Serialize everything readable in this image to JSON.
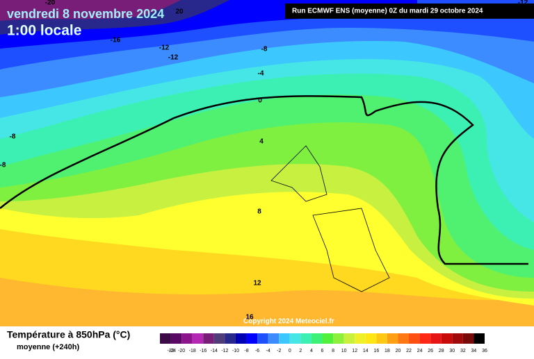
{
  "header": {
    "title": "vendredi 8 novembre 2024",
    "subtitle": "1:00 locale",
    "run": "Run ECMWF ENS (moyenne) 0Z du mardi 29 octobre 2024"
  },
  "map": {
    "contour_labels": [
      -20,
      20,
      -16,
      -12,
      -12,
      -8,
      -4,
      0,
      4,
      8,
      12,
      16,
      -8,
      -8,
      -12
    ],
    "copyright": "Copyright 2024 Meteociel.fr"
  },
  "legend": {
    "title": "Température à 850hPa (°C)",
    "subtitle": "moyenne  (+240h)",
    "labels": [
      -24,
      -22,
      -20,
      -18,
      -16,
      -14,
      -12,
      -10,
      -8,
      -6,
      -4,
      -2,
      0,
      2,
      4,
      6,
      8,
      10,
      12,
      14,
      16,
      18,
      20,
      22,
      24,
      26,
      28,
      30,
      32,
      34,
      36
    ],
    "colors": [
      "#3c0a46",
      "#5a0a64",
      "#8c148c",
      "#b428b4",
      "#781e78",
      "#503c78",
      "#28288c",
      "#0000b4",
      "#0000ff",
      "#1e50ff",
      "#3c8cff",
      "#3cc8ff",
      "#46e6e6",
      "#3cf0b4",
      "#3cf078",
      "#50f03c",
      "#8cf03c",
      "#c8f03c",
      "#f0f028",
      "#ffe614",
      "#ffc814",
      "#ffa014",
      "#ff7814",
      "#ff5014",
      "#ff2814",
      "#e61414",
      "#c80a0a",
      "#a00a0a",
      "#780a0a",
      "#000000"
    ]
  }
}
